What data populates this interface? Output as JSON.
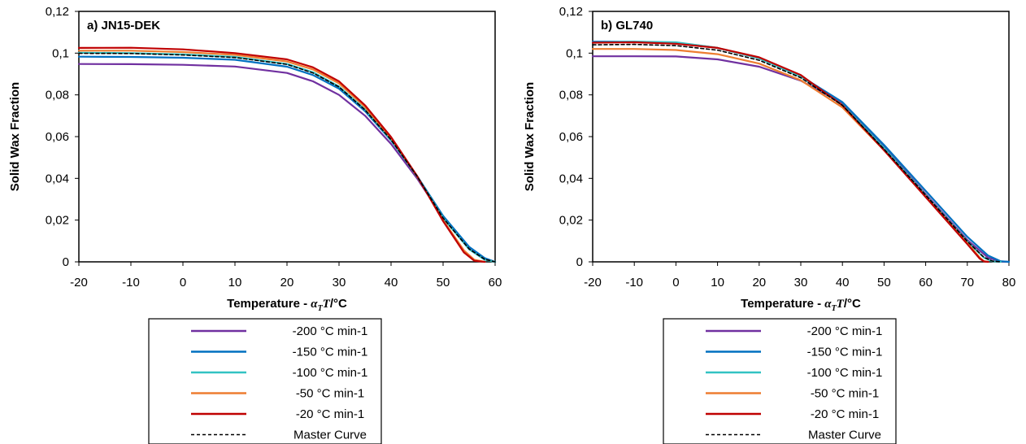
{
  "chart_data": [
    {
      "type": "line",
      "title": "a) JN15-DEK",
      "xlabel_prefix": "Temperature - ",
      "xlabel_symbol_alpha": "α",
      "xlabel_symbol_sub": "T",
      "xlabel_symbol_t": "T",
      "xlabel_suffix": "/°C",
      "ylabel": "Solid Wax Fraction",
      "xlim": [
        -20,
        60
      ],
      "ylim": [
        0,
        0.12
      ],
      "xticks": [
        -20,
        -10,
        0,
        10,
        20,
        30,
        40,
        50,
        60
      ],
      "yticks": [
        0,
        0.02,
        0.04,
        0.06,
        0.08,
        0.1,
        0.12
      ],
      "xtick_labels": [
        "-20",
        "-10",
        "0",
        "10",
        "20",
        "30",
        "40",
        "50",
        "60"
      ],
      "ytick_labels": [
        "0",
        "0,02",
        "0,04",
        "0,06",
        "0,08",
        "0,1",
        "0,12"
      ],
      "legend_position": "bottom",
      "series": [
        {
          "name": "-200 °C min-1",
          "color": "#7030a0",
          "dash": false,
          "x": [
            -20,
            -10,
            0,
            10,
            20,
            25,
            30,
            35,
            40,
            45,
            50,
            55,
            58,
            60
          ],
          "y": [
            0.0948,
            0.0947,
            0.0944,
            0.0936,
            0.0905,
            0.0865,
            0.08,
            0.07,
            0.0565,
            0.04,
            0.021,
            0.0065,
            0.0015,
            0
          ]
        },
        {
          "name": "-150 °C min-1",
          "color": "#0070c0",
          "dash": false,
          "x": [
            -20,
            -10,
            0,
            10,
            20,
            25,
            30,
            35,
            40,
            45,
            50,
            55,
            58,
            60
          ],
          "y": [
            0.0983,
            0.0982,
            0.0978,
            0.0968,
            0.0935,
            0.0895,
            0.083,
            0.0722,
            0.0582,
            0.0412,
            0.022,
            0.0072,
            0.0018,
            0
          ]
        },
        {
          "name": "-100 °C min-1",
          "color": "#33c3c3",
          "dash": false,
          "x": [
            -20,
            -10,
            0,
            10,
            20,
            25,
            30,
            35,
            40,
            45,
            50,
            55,
            58,
            60
          ],
          "y": [
            0.1002,
            0.1,
            0.0994,
            0.0982,
            0.0948,
            0.0908,
            0.084,
            0.073,
            0.0585,
            0.041,
            0.021,
            0.006,
            0.001,
            0
          ]
        },
        {
          "name": "-50 °C min-1",
          "color": "#ed7d31",
          "dash": false,
          "x": [
            -20,
            -10,
            0,
            10,
            20,
            25,
            30,
            35,
            40,
            45,
            50,
            54,
            56,
            58
          ],
          "y": [
            0.1012,
            0.1012,
            0.1005,
            0.0992,
            0.096,
            0.0922,
            0.0855,
            0.0742,
            0.0592,
            0.041,
            0.02,
            0.0055,
            0.001,
            0
          ]
        },
        {
          "name": "-20 °C min-1",
          "color": "#c00000",
          "dash": false,
          "x": [
            -20,
            -10,
            0,
            10,
            20,
            25,
            30,
            35,
            40,
            45,
            50,
            54,
            56,
            58
          ],
          "y": [
            0.1025,
            0.1026,
            0.1018,
            0.1,
            0.097,
            0.0932,
            0.0865,
            0.075,
            0.0598,
            0.0412,
            0.0195,
            0.0045,
            0.0005,
            0
          ]
        },
        {
          "name": "Master Curve",
          "color": "#000000",
          "dash": true,
          "x": [
            -20,
            -10,
            0,
            10,
            20,
            25,
            30,
            35,
            40,
            45,
            50,
            55,
            58,
            60
          ],
          "y": [
            0.0999,
            0.0998,
            0.0991,
            0.0979,
            0.0946,
            0.0905,
            0.0838,
            0.0728,
            0.0585,
            0.041,
            0.021,
            0.0062,
            0.0012,
            0
          ]
        }
      ]
    },
    {
      "type": "line",
      "title": "b) GL740",
      "xlabel_prefix": "Temperature - ",
      "xlabel_symbol_alpha": "α",
      "xlabel_symbol_sub": "T",
      "xlabel_symbol_t": "T",
      "xlabel_suffix": "/°C",
      "ylabel": "Solid Wax Fraction",
      "xlim": [
        -20,
        80
      ],
      "ylim": [
        0,
        0.12
      ],
      "xticks": [
        -20,
        -10,
        0,
        10,
        20,
        30,
        40,
        50,
        60,
        70,
        80
      ],
      "yticks": [
        0,
        0.02,
        0.04,
        0.06,
        0.08,
        0.1,
        0.12
      ],
      "xtick_labels": [
        "-20",
        "-10",
        "0",
        "10",
        "20",
        "30",
        "40",
        "50",
        "60",
        "70",
        "80"
      ],
      "ytick_labels": [
        "0",
        "0,02",
        "0,04",
        "0,06",
        "0,08",
        "0,1",
        "0,12"
      ],
      "legend_position": "bottom",
      "series": [
        {
          "name": "-200 °C min-1",
          "color": "#7030a0",
          "dash": false,
          "x": [
            -20,
            -10,
            0,
            10,
            20,
            30,
            40,
            50,
            60,
            70,
            75,
            78,
            80
          ],
          "y": [
            0.0985,
            0.0985,
            0.0984,
            0.097,
            0.0935,
            0.0868,
            0.076,
            0.055,
            0.0325,
            0.0105,
            0.002,
            0.0002,
            0
          ]
        },
        {
          "name": "-150 °C min-1",
          "color": "#0070c0",
          "dash": false,
          "x": [
            -20,
            -10,
            0,
            10,
            20,
            30,
            40,
            50,
            60,
            70,
            75,
            78,
            80
          ],
          "y": [
            0.1055,
            0.1055,
            0.105,
            0.1025,
            0.0975,
            0.089,
            0.0765,
            0.056,
            0.034,
            0.012,
            0.003,
            0.0003,
            0
          ]
        },
        {
          "name": "-100 °C min-1",
          "color": "#33c3c3",
          "dash": false,
          "x": [
            -20,
            -10,
            0,
            10,
            20,
            30,
            40,
            50,
            60,
            70,
            74,
            76,
            78
          ],
          "y": [
            0.105,
            0.1055,
            0.1052,
            0.1025,
            0.0975,
            0.0888,
            0.0752,
            0.0545,
            0.032,
            0.0098,
            0.002,
            0.0003,
            0
          ]
        },
        {
          "name": "-50 °C min-1",
          "color": "#ed7d31",
          "dash": false,
          "x": [
            -20,
            -10,
            0,
            10,
            20,
            30,
            40,
            50,
            60,
            70,
            73,
            74,
            75
          ],
          "y": [
            0.102,
            0.102,
            0.1015,
            0.0995,
            0.095,
            0.087,
            0.074,
            0.0535,
            0.0315,
            0.009,
            0.002,
            0.0003,
            0
          ]
        },
        {
          "name": "-20 °C min-1",
          "color": "#c00000",
          "dash": false,
          "x": [
            -20,
            -10,
            0,
            10,
            20,
            30,
            40,
            50,
            60,
            70,
            73,
            74,
            75
          ],
          "y": [
            0.105,
            0.1052,
            0.1045,
            0.1025,
            0.098,
            0.0895,
            0.075,
            0.0535,
            0.031,
            0.0085,
            0.0015,
            0.0002,
            0
          ]
        },
        {
          "name": "Master Curve",
          "color": "#000000",
          "dash": true,
          "x": [
            -20,
            -10,
            0,
            10,
            20,
            30,
            40,
            50,
            60,
            70,
            74,
            76,
            78
          ],
          "y": [
            0.104,
            0.1042,
            0.1036,
            0.1014,
            0.0966,
            0.0882,
            0.075,
            0.054,
            0.032,
            0.0098,
            0.0022,
            0.0004,
            0
          ]
        }
      ]
    }
  ]
}
